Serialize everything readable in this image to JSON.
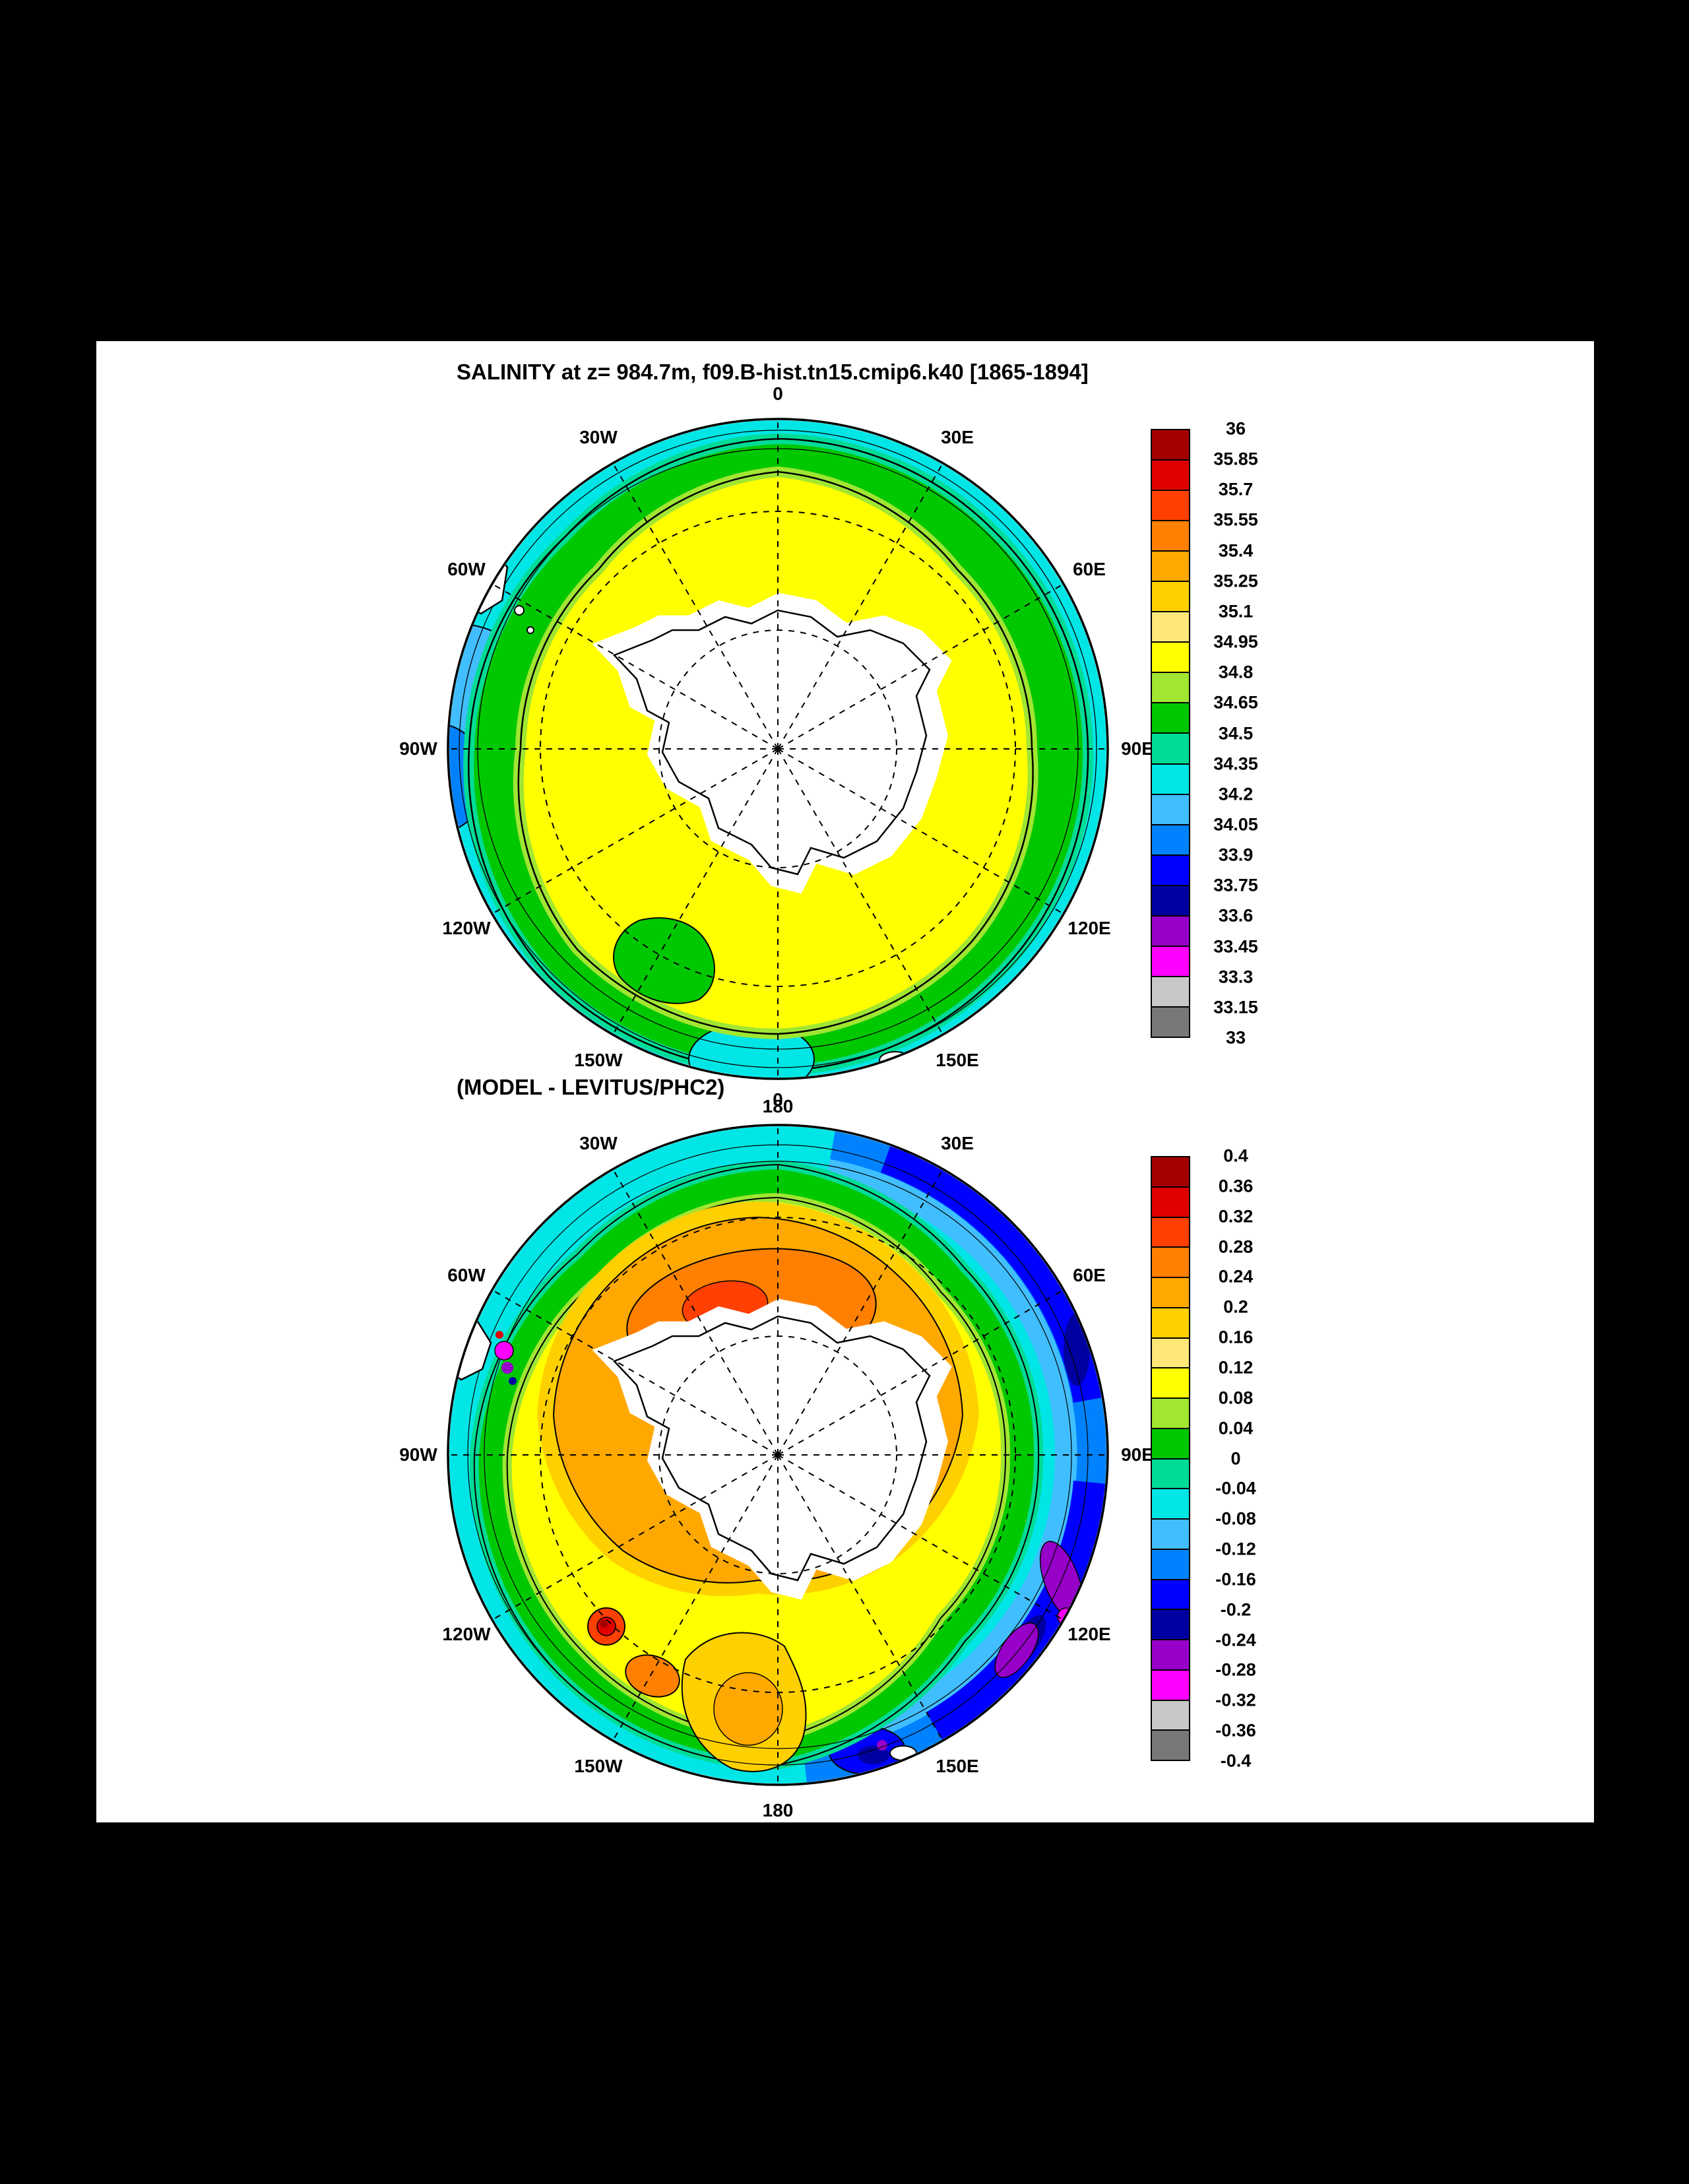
{
  "page": {
    "background": "#000000",
    "panel_background": "#ffffff"
  },
  "palette": [
    "#a50000",
    "#e00000",
    "#ff4000",
    "#ff8000",
    "#ffa800",
    "#ffd000",
    "#ffe878",
    "#ffff00",
    "#a0e632",
    "#00c800",
    "#00dc96",
    "#00e6e6",
    "#41beff",
    "#0082ff",
    "#0000ff",
    "#0000a0",
    "#9600c8",
    "#ff00ff",
    "#c8c8c8",
    "#787878"
  ],
  "figure1": {
    "title": "SALINITY at z= 984.7m, f09.B-hist.tn15.cmip6.k40 [1865-1894]",
    "lon_labels": [
      "0",
      "30W",
      "30E",
      "60W",
      "60E",
      "90W",
      "90E",
      "120W",
      "120E",
      "150W",
      "150E",
      "180"
    ],
    "colorbar": {
      "tick_labels": [
        "36",
        "35.85",
        "35.7",
        "35.55",
        "35.4",
        "35.25",
        "35.1",
        "34.95",
        "34.8",
        "34.65",
        "34.5",
        "34.35",
        "34.2",
        "34.05",
        "33.9",
        "33.75",
        "33.6",
        "33.45",
        "33.3",
        "33.15",
        "33"
      ]
    }
  },
  "figure2": {
    "title": "(MODEL - LEVITUS/PHC2)",
    "lon_labels": [
      "0",
      "30W",
      "30E",
      "60W",
      "60E",
      "90W",
      "90E",
      "120W",
      "120E",
      "150W",
      "150E",
      "180"
    ],
    "colorbar": {
      "tick_labels": [
        "0.4",
        "0.36",
        "0.32",
        "0.28",
        "0.24",
        "0.2",
        "0.16",
        "0.12",
        "0.08",
        "0.04",
        "0",
        "-0.04",
        "-0.08",
        "-0.12",
        "-0.16",
        "-0.2",
        "-0.24",
        "-0.28",
        "-0.32",
        "-0.36",
        "-0.4"
      ]
    }
  },
  "chart_data": [
    {
      "type": "heatmap",
      "title": "SALINITY at z= 984.7m, f09.B-hist.tn15.cmip6.k40 [1865-1894]",
      "projection": "south polar stereographic, 0 longitude at top",
      "variable": "salinity",
      "contour_levels": [
        33,
        33.15,
        33.3,
        33.45,
        33.6,
        33.75,
        33.9,
        34.05,
        34.2,
        34.35,
        34.5,
        34.65,
        34.8,
        34.95,
        35.1,
        35.25,
        35.4,
        35.55,
        35.7,
        35.85,
        36
      ],
      "colorbar_order": "36 at top (dark red) to 33 at bottom (dark gray)",
      "longitude_ticks": [
        "0",
        "30E",
        "60E",
        "90E",
        "120E",
        "150E",
        "180",
        "150W",
        "120W",
        "90W",
        "60W",
        "30W"
      ],
      "observed_pattern": {
        "continent": "white (no data) Antarctica at center",
        "inner_ocean_ring": "34.8-34.95 (yellow) surrounding the continent",
        "mid_ring": "34.5-34.8 (green shades)",
        "outer_ocean": "34.2-34.35 (cyan), patches 33.9-34.2 (light blue/blue) near western edge",
        "land_at_edges": "tip of South America at upper-left edge, small islands"
      }
    },
    {
      "type": "heatmap",
      "title": "(MODEL - LEVITUS/PHC2)",
      "projection": "south polar stereographic, 0 longitude at top",
      "variable": "salinity difference (model minus observations)",
      "contour_levels": [
        -0.4,
        -0.36,
        -0.32,
        -0.28,
        -0.24,
        -0.2,
        -0.16,
        -0.12,
        -0.08,
        -0.04,
        0,
        0.04,
        0.08,
        0.12,
        0.16,
        0.2,
        0.24,
        0.28,
        0.32,
        0.36,
        0.4
      ],
      "colorbar_order": "0.4 at top (dark red) to -0.4 at bottom (dark gray)",
      "longitude_ticks": [
        "0",
        "30E",
        "60E",
        "90E",
        "120E",
        "150E",
        "180",
        "150W",
        "120W",
        "90W",
        "60W",
        "30W"
      ],
      "observed_pattern": {
        "continent": "white (no data) Antarctica at center",
        "inner_ocean": "+0.16 to +0.28 (orange) positive bias near the continent",
        "mid_ring": "0 to +0.12 (yellow to green)",
        "outer_ocean": "-0.04 to -0.16 (cyan/light blue)",
        "east_edge": "-0.16 to -0.32 (blue, navy, purple, magenta) strong negative bias near 90E-150E",
        "local_extremes": "small +0.3 to +0.4 (red) spots near 135W, magenta/purple spots near Drake Passage"
      }
    }
  ]
}
